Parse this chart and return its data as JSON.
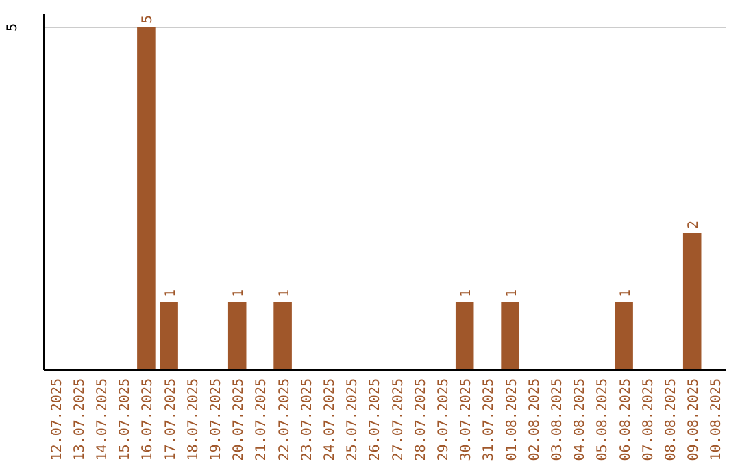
{
  "chart_data": {
    "type": "bar",
    "categories": [
      "12.07.2025",
      "13.07.2025",
      "14.07.2025",
      "15.07.2025",
      "16.07.2025",
      "17.07.2025",
      "18.07.2025",
      "19.07.2025",
      "20.07.2025",
      "21.07.2025",
      "22.07.2025",
      "23.07.2025",
      "24.07.2025",
      "25.07.2025",
      "26.07.2025",
      "27.07.2025",
      "28.07.2025",
      "29.07.2025",
      "30.07.2025",
      "31.07.2025",
      "01.08.2025",
      "02.08.2025",
      "03.08.2025",
      "04.08.2025",
      "05.08.2025",
      "06.08.2025",
      "07.08.2025",
      "08.08.2025",
      "09.08.2025",
      "10.08.2025"
    ],
    "values": [
      null,
      null,
      null,
      null,
      5,
      1,
      null,
      null,
      1,
      null,
      1,
      null,
      null,
      null,
      null,
      null,
      null,
      null,
      1,
      null,
      1,
      null,
      null,
      null,
      null,
      1,
      null,
      null,
      2,
      null
    ],
    "color": "#a0572a",
    "ylim": [
      0,
      5.2
    ],
    "yticks": [
      {
        "value": 0,
        "label": null
      },
      5
    ],
    "grid": "y",
    "data_labels": true
  }
}
